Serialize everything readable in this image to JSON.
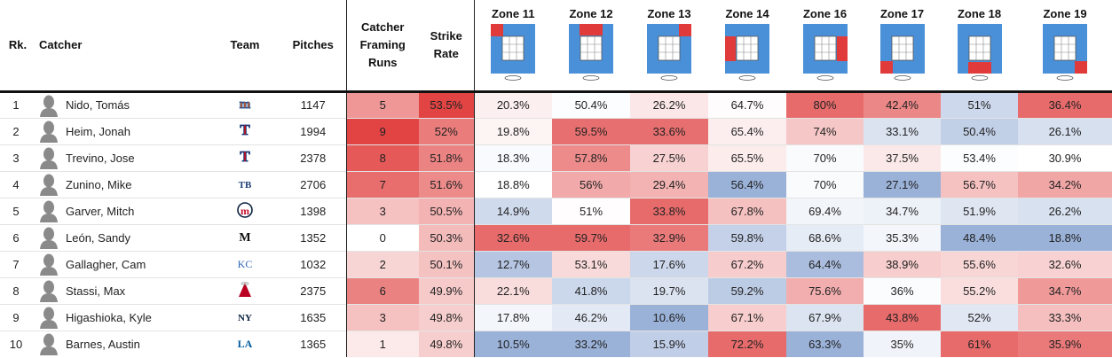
{
  "headers": {
    "rank": "Rk.",
    "catcher": "Catcher",
    "team": "Team",
    "pitches": "Pitches",
    "framing_runs": "Catcher Framing Runs",
    "strike_rate": "Strike Rate",
    "zones": [
      "Zone 11",
      "Zone 12",
      "Zone 13",
      "Zone 14",
      "Zone 16",
      "Zone 17",
      "Zone 18",
      "Zone 19"
    ]
  },
  "zone_highlight_positions": [
    "top-left",
    "top-middle",
    "top-right",
    "middle-left",
    "middle-right",
    "bottom-left",
    "bottom-middle",
    "bottom-right"
  ],
  "colors": {
    "zone_box": "#4a90d9",
    "zone_highlight": "#e03a3a",
    "high": "#e03a3a",
    "low": "#6f8fc7",
    "neutral": "#ffffff"
  },
  "rows": [
    {
      "rank": "1",
      "name": "Nido, Tomás",
      "team_icon": "mets-logo-icon",
      "pitches": "1147",
      "runs": "5",
      "runs_v": 5,
      "strike": "53.5%",
      "strike_v": 53.5,
      "zones": [
        "20.3%",
        "50.4%",
        "26.2%",
        "64.7%",
        "80%",
        "42.4%",
        "51%",
        "36.4%"
      ]
    },
    {
      "rank": "2",
      "name": "Heim, Jonah",
      "team_icon": "rangers-logo-icon",
      "pitches": "1994",
      "runs": "9",
      "runs_v": 9,
      "strike": "52%",
      "strike_v": 52,
      "zones": [
        "19.8%",
        "59.5%",
        "33.6%",
        "65.4%",
        "74%",
        "33.1%",
        "50.4%",
        "26.1%"
      ]
    },
    {
      "rank": "3",
      "name": "Trevino, Jose",
      "team_icon": "rangers-logo-icon",
      "pitches": "2378",
      "runs": "8",
      "runs_v": 8,
      "strike": "51.8%",
      "strike_v": 51.8,
      "zones": [
        "18.3%",
        "57.8%",
        "27.5%",
        "65.5%",
        "70%",
        "37.5%",
        "53.4%",
        "30.9%"
      ]
    },
    {
      "rank": "4",
      "name": "Zunino, Mike",
      "team_icon": "rays-logo-icon",
      "pitches": "2706",
      "runs": "7",
      "runs_v": 7,
      "strike": "51.6%",
      "strike_v": 51.6,
      "zones": [
        "18.8%",
        "56%",
        "29.4%",
        "56.4%",
        "70%",
        "27.1%",
        "56.7%",
        "34.2%"
      ]
    },
    {
      "rank": "5",
      "name": "Garver, Mitch",
      "team_icon": "twins-logo-icon",
      "pitches": "1398",
      "runs": "3",
      "runs_v": 3,
      "strike": "50.5%",
      "strike_v": 50.5,
      "zones": [
        "14.9%",
        "51%",
        "33.8%",
        "67.8%",
        "69.4%",
        "34.7%",
        "51.9%",
        "26.2%"
      ]
    },
    {
      "rank": "6",
      "name": "León, Sandy",
      "team_icon": "marlins-logo-icon",
      "pitches": "1352",
      "runs": "0",
      "runs_v": 0,
      "strike": "50.3%",
      "strike_v": 50.3,
      "zones": [
        "32.6%",
        "59.7%",
        "32.9%",
        "59.8%",
        "68.6%",
        "35.3%",
        "48.4%",
        "18.8%"
      ]
    },
    {
      "rank": "7",
      "name": "Gallagher, Cam",
      "team_icon": "royals-logo-icon",
      "pitches": "1032",
      "runs": "2",
      "runs_v": 2,
      "strike": "50.1%",
      "strike_v": 50.1,
      "zones": [
        "12.7%",
        "53.1%",
        "17.6%",
        "67.2%",
        "64.4%",
        "38.9%",
        "55.6%",
        "32.6%"
      ]
    },
    {
      "rank": "8",
      "name": "Stassi, Max",
      "team_icon": "angels-logo-icon",
      "pitches": "2375",
      "runs": "6",
      "runs_v": 6,
      "strike": "49.9%",
      "strike_v": 49.9,
      "zones": [
        "22.1%",
        "41.8%",
        "19.7%",
        "59.2%",
        "75.6%",
        "36%",
        "55.2%",
        "34.7%"
      ]
    },
    {
      "rank": "9",
      "name": "Higashioka, Kyle",
      "team_icon": "yankees-logo-icon",
      "pitches": "1635",
      "runs": "3",
      "runs_v": 3,
      "strike": "49.8%",
      "strike_v": 49.8,
      "zones": [
        "17.8%",
        "46.2%",
        "10.6%",
        "67.1%",
        "67.9%",
        "43.8%",
        "52%",
        "33.3%"
      ]
    },
    {
      "rank": "10",
      "name": "Barnes, Austin",
      "team_icon": "dodgers-logo-icon",
      "pitches": "1365",
      "runs": "1",
      "runs_v": 1,
      "strike": "49.8%",
      "strike_v": 49.8,
      "zones": [
        "10.5%",
        "33.2%",
        "15.9%",
        "72.2%",
        "63.3%",
        "35%",
        "61%",
        "35.9%"
      ]
    }
  ]
}
